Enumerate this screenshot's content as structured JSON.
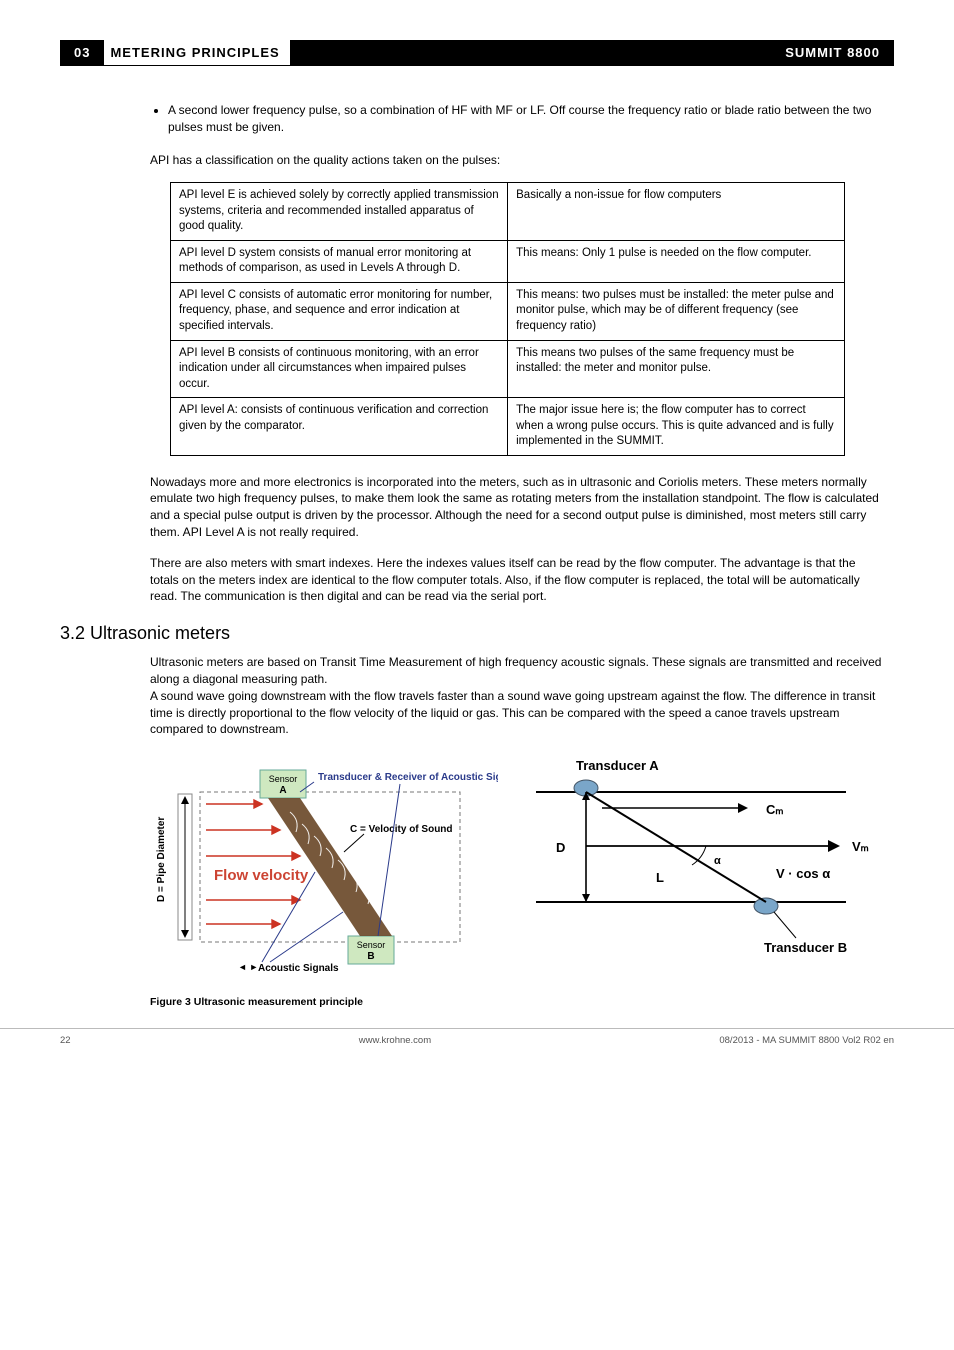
{
  "header": {
    "chapter_num": "03",
    "chapter_title": "METERING PRINCIPLES",
    "product": "SUMMIT 8800"
  },
  "bullet": "A second lower frequency pulse, so a combination of HF with MF or LF. Off course the frequency ratio or blade ratio between the two pulses must be given.",
  "api_intro": "API has a classification on the quality actions taken on the pulses:",
  "api_table": {
    "rows": [
      [
        "API level E is achieved solely by correctly applied transmission systems, criteria and recommended installed apparatus of good quality.",
        "Basically a non-issue for flow computers"
      ],
      [
        "API level D system consists of manual error monitoring at methods of comparison, as used in Levels A through D.",
        "This means: Only 1 pulse is needed on the flow computer."
      ],
      [
        "API level C consists of automatic error monitoring for number, frequency, phase, and sequence and error indication at specified intervals.",
        "This means: two pulses must be installed: the meter pulse and monitor pulse, which may be of different frequency (see frequency ratio)"
      ],
      [
        "API level B consists of continuous monitoring, with an error indication under all circumstances when impaired pulses occur.",
        "This means two pulses of the same frequency must be installed: the meter and monitor pulse."
      ],
      [
        "API level A: consists of continuous verification and correction given by the comparator.",
        "The major issue here is; the flow computer has to correct when a wrong pulse occurs. This is quite advanced and is fully implemented in the SUMMIT."
      ]
    ]
  },
  "para1": "Nowadays more and more electronics is incorporated into the meters, such as in ultrasonic and Coriolis meters. These meters normally emulate two high frequency pulses, to make them look the same as rotating meters from the installation standpoint. The flow is calculated and a special pulse output is driven by the processor. Although the need for a second output pulse is diminished, most meters still carry them. API Level A is not really required.",
  "para2": "There are also meters with smart indexes. Here the indexes values itself can be read by the flow computer. The advantage is that the totals on the meters index are identical to the flow computer totals. Also, if the flow computer is replaced, the total will be automatically read. The communication is then digital and can be read via the serial port.",
  "section_heading": "3.2 Ultrasonic meters",
  "para3": "Ultrasonic meters are based on Transit Time Measurement of high frequency acoustic signals. These signals are transmitted and received along a diagonal measuring path.",
  "para4": "A sound wave going downstream with the flow travels faster than a sound wave going upstream against the flow. The difference in transit time is directly proportional to the flow velocity of the liquid or gas. This can be compared with the speed a canoe travels upstream compared to downstream.",
  "fig_caption": "Figure 3    Ultrasonic measurement principle",
  "diagram_left": {
    "title": "Transducer & Receiver of Acoustic Signals",
    "sensor_a": "Sensor\nA",
    "sensor_b": "Sensor\nB",
    "c_label": "C = Velocity of Sound",
    "flow_label": "Flow velocity",
    "ylabel": "D = Pipe Diameter",
    "acoustic": "Acoustic Signals"
  },
  "diagram_right": {
    "transducer_a": "Transducer A",
    "transducer_b": "Transducer B",
    "D": "D",
    "L": "L",
    "alpha": "α",
    "Cm": "Cₘ",
    "Vm": "Vₘ",
    "Vcos": "V · cos α"
  },
  "footer": {
    "page": "22",
    "url": "www.krohne.com",
    "doc": "08/2013 - MA SUMMIT 8800 Vol2 R02 en"
  }
}
